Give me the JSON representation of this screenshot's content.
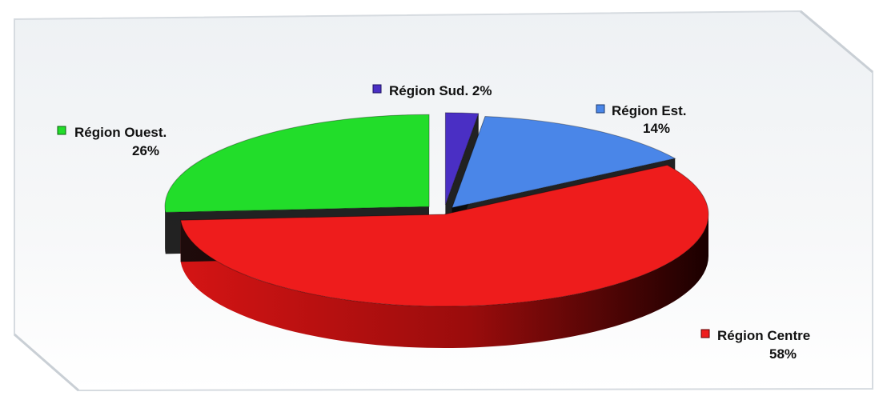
{
  "chart_data": {
    "type": "pie",
    "style": "3d-exploded",
    "legend": "none",
    "slices": [
      {
        "label": "Région Sud.",
        "value": 2,
        "value_label": "2%",
        "color": "#4a2fc4"
      },
      {
        "label": "Région Est.",
        "value": 14,
        "value_label": "14%",
        "color": "#4a86e8"
      },
      {
        "label": "Région Centre",
        "value": 58,
        "value_label": "58%",
        "color": "#ee1c1c"
      },
      {
        "label": "Région Ouest.",
        "value": 26,
        "value_label": "26%",
        "color": "#22dd2a"
      }
    ]
  }
}
